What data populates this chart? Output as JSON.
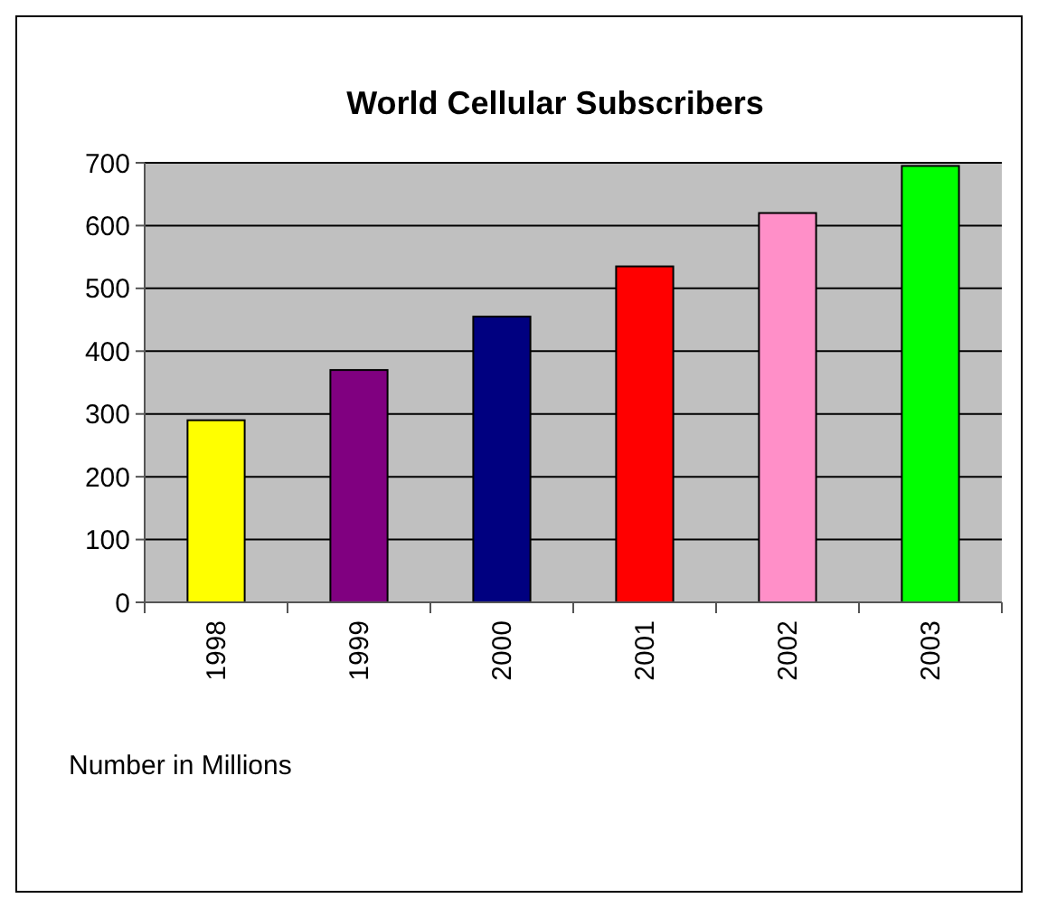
{
  "chart_data": {
    "type": "bar",
    "title": "World Cellular Subscribers",
    "categories": [
      "1998",
      "1999",
      "2000",
      "2001",
      "2002",
      "2003"
    ],
    "values": [
      290,
      370,
      455,
      535,
      620,
      695
    ],
    "colors": [
      "#ffff00",
      "#800080",
      "#000080",
      "#ff0000",
      "#ff8fc8",
      "#00ff00"
    ],
    "ylim": [
      0,
      700
    ],
    "yticks": [
      0,
      100,
      200,
      300,
      400,
      500,
      600,
      700
    ],
    "grid": "y",
    "annotations": [
      "Number in Millions"
    ]
  }
}
